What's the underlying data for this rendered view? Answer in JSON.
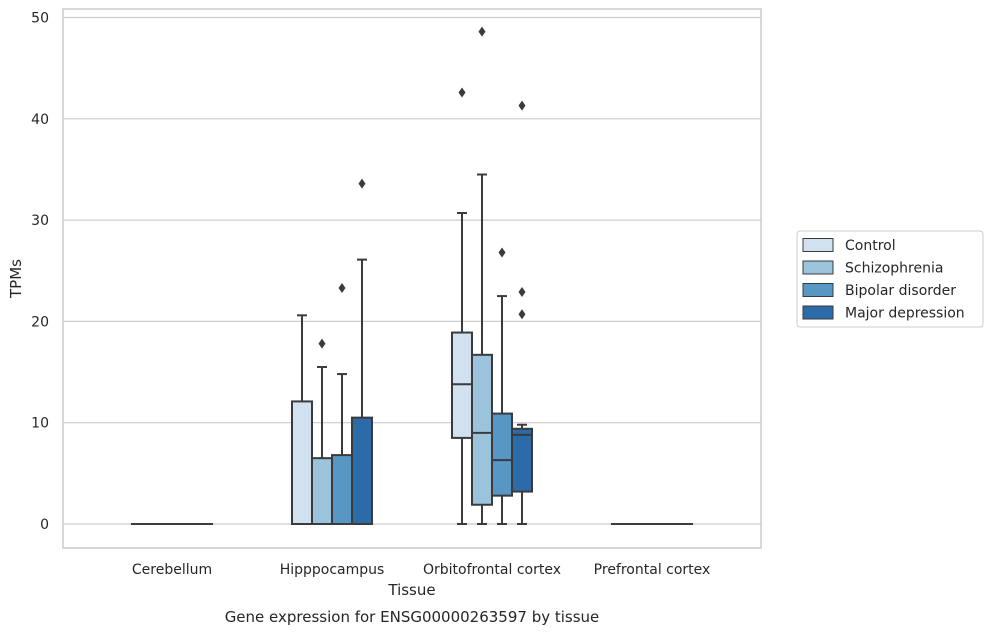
{
  "chart_data": {
    "type": "box",
    "caption": "Gene expression for ENSG00000263597 by tissue",
    "xlabel": "Tissue",
    "ylabel": "TPMs",
    "ylim": [
      -2.3,
      50.9
    ],
    "yticks": [
      0,
      10,
      20,
      30,
      40,
      50
    ],
    "grid": "horizontal",
    "legend_position": "right",
    "categories": [
      "Cerebellum",
      "Hipppocampus",
      "Orbitofrontal cortex",
      "Prefrontal cortex"
    ],
    "series": [
      {
        "name": "Control",
        "color": "#d1e1ef",
        "boxes": [
          {
            "whislo": 0,
            "q1": 0,
            "med": 0,
            "q3": 0,
            "whishi": 0,
            "fliers": []
          },
          {
            "whislo": 0,
            "q1": 0,
            "med": 0,
            "q3": 12.1,
            "whishi": 20.6,
            "fliers": []
          },
          {
            "whislo": 0,
            "q1": 8.5,
            "med": 13.8,
            "q3": 18.9,
            "whishi": 30.7,
            "fliers": [
              42.6
            ]
          },
          {
            "whislo": 0,
            "q1": 0,
            "med": 0,
            "q3": 0,
            "whishi": 0,
            "fliers": []
          }
        ]
      },
      {
        "name": "Schizophrenia",
        "color": "#9cc3dc",
        "boxes": [
          {
            "whislo": 0,
            "q1": 0,
            "med": 0,
            "q3": 0,
            "whishi": 0,
            "fliers": []
          },
          {
            "whislo": 0,
            "q1": 0,
            "med": 0,
            "q3": 6.5,
            "whishi": 15.5,
            "fliers": [
              17.8
            ]
          },
          {
            "whislo": 0,
            "q1": 1.9,
            "med": 9.0,
            "q3": 16.7,
            "whishi": 34.5,
            "fliers": [
              48.6
            ]
          },
          {
            "whislo": 0,
            "q1": 0,
            "med": 0,
            "q3": 0,
            "whishi": 0,
            "fliers": []
          }
        ]
      },
      {
        "name": "Bipolar disorder",
        "color": "#5897c4",
        "boxes": [
          {
            "whislo": 0,
            "q1": 0,
            "med": 0,
            "q3": 0,
            "whishi": 0,
            "fliers": []
          },
          {
            "whislo": 0,
            "q1": 0,
            "med": 0,
            "q3": 6.8,
            "whishi": 14.8,
            "fliers": [
              23.3
            ]
          },
          {
            "whislo": 0,
            "q1": 2.8,
            "med": 6.3,
            "q3": 10.9,
            "whishi": 22.5,
            "fliers": [
              26.8
            ]
          },
          {
            "whislo": 0,
            "q1": 0,
            "med": 0,
            "q3": 0,
            "whishi": 0,
            "fliers": []
          }
        ]
      },
      {
        "name": "Major depression",
        "color": "#2b6ba7",
        "boxes": [
          {
            "whislo": 0,
            "q1": 0,
            "med": 0,
            "q3": 0,
            "whishi": 0,
            "fliers": []
          },
          {
            "whislo": 0,
            "q1": 0,
            "med": 0,
            "q3": 10.5,
            "whishi": 26.1,
            "fliers": [
              33.6
            ]
          },
          {
            "whislo": 0,
            "q1": 3.2,
            "med": 8.8,
            "q3": 9.4,
            "whishi": 9.8,
            "fliers": [
              20.7,
              22.9,
              41.3
            ]
          },
          {
            "whislo": 0,
            "q1": 0,
            "med": 0,
            "q3": 0,
            "whishi": 0,
            "fliers": []
          }
        ]
      }
    ]
  }
}
